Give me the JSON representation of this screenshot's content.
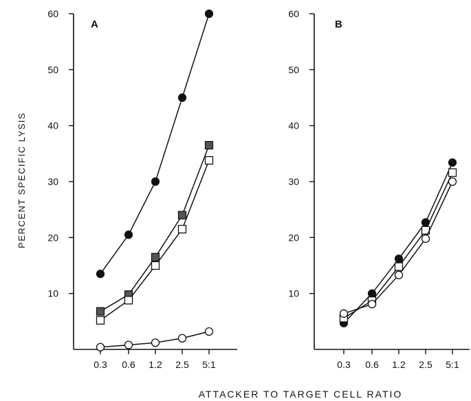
{
  "chart_data": [
    {
      "type": "line",
      "panel_label": "A",
      "categories": [
        "0.3",
        "0.6",
        "1.2",
        "2.5",
        "5:1"
      ],
      "series": [
        {
          "marker": "filled-circle",
          "values": [
            13.5,
            20.5,
            30,
            45,
            60
          ]
        },
        {
          "marker": "filled-square",
          "values": [
            6.8,
            9.8,
            16.5,
            24,
            36.5
          ]
        },
        {
          "marker": "open-square",
          "values": [
            5.2,
            8.8,
            15,
            21.5,
            33.8
          ]
        },
        {
          "marker": "open-circle",
          "values": [
            0.4,
            0.8,
            1.2,
            2,
            3.2
          ]
        }
      ],
      "ylabel": "PERCENT SPECIFIC LYSIS",
      "ylim": [
        0,
        60
      ],
      "yticks": [
        "10",
        "20",
        "30",
        "40",
        "50",
        "60"
      ],
      "grid": false
    },
    {
      "type": "line",
      "panel_label": "B",
      "categories": [
        "0.3",
        "0.6",
        "1.2",
        "2.5",
        "5:1"
      ],
      "series": [
        {
          "marker": "filled-circle",
          "values": [
            4.7,
            10,
            16.2,
            22.7,
            33.4
          ]
        },
        {
          "marker": "open-square",
          "values": [
            5.6,
            8.7,
            14.8,
            21.3,
            31.6
          ]
        },
        {
          "marker": "open-circle",
          "values": [
            6.4,
            8.1,
            13.3,
            19.8,
            30
          ]
        }
      ],
      "ylim": [
        0,
        60
      ],
      "yticks": [
        "10",
        "20",
        "30",
        "40",
        "50",
        "60"
      ],
      "grid": false
    }
  ],
  "xlabel": "ATTACKER TO TARGET CELL RATIO"
}
